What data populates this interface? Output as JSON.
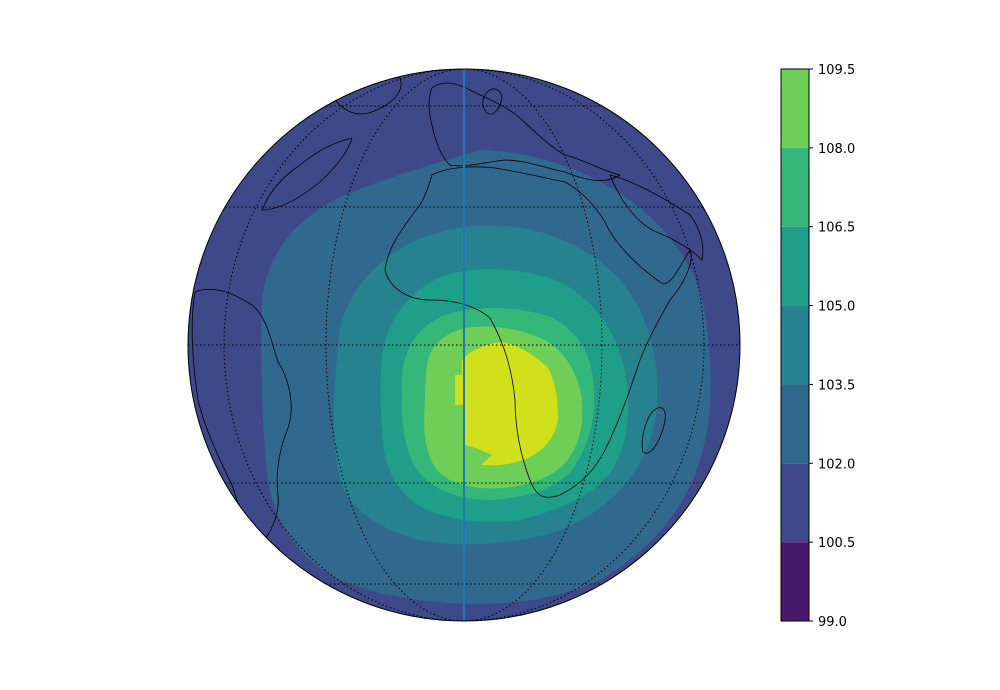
{
  "chart_data": {
    "type": "heatmap",
    "title": "",
    "xlabel": "",
    "ylabel": "",
    "projection": "orthographic globe centred over Africa / South Atlantic",
    "grid": true,
    "colormap": "viridis",
    "colorbar": {
      "placement": "right",
      "levels": [
        99.0,
        100.5,
        102.0,
        103.5,
        105.0,
        106.5,
        108.0,
        109.5
      ],
      "tick_labels": [
        "99.0",
        "100.5",
        "102.0",
        "103.5",
        "105.0",
        "106.5",
        "108.0",
        "109.5"
      ],
      "colors": [
        "#481a6c",
        "#3e4989",
        "#31688e",
        "#26828e",
        "#1f9e89",
        "#35b779",
        "#6ece58",
        "#d0e11c"
      ]
    },
    "field": {
      "description": "concentric contour bands peaking near southern Africa",
      "max_band": [
        108.0,
        109.5
      ],
      "outer_band": [
        100.5,
        102.0
      ]
    },
    "vertical_line_color": "#1f77b4"
  }
}
